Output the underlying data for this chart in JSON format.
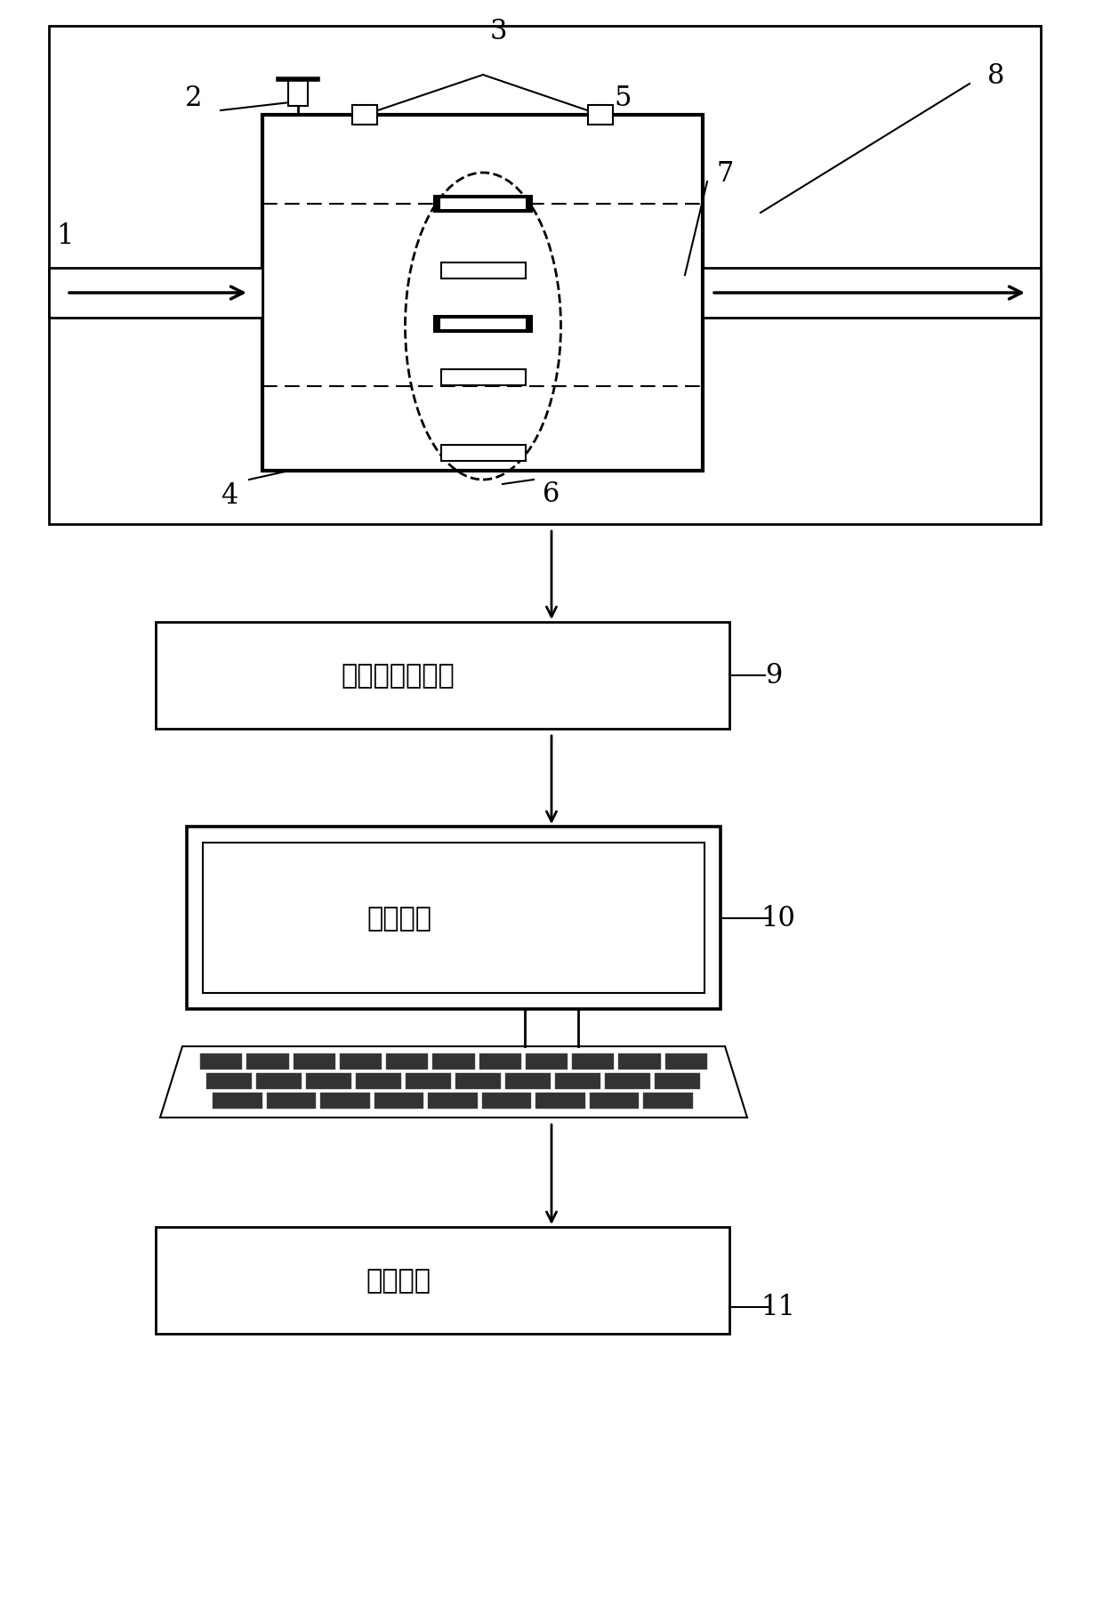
{
  "bg_color": "#ffffff",
  "box9_text": "数据采集与处理",
  "box11_text": "流量计算",
  "monitor_text": "图像重建",
  "label_fs": 18,
  "lw": 1.5,
  "lw2": 2.0
}
